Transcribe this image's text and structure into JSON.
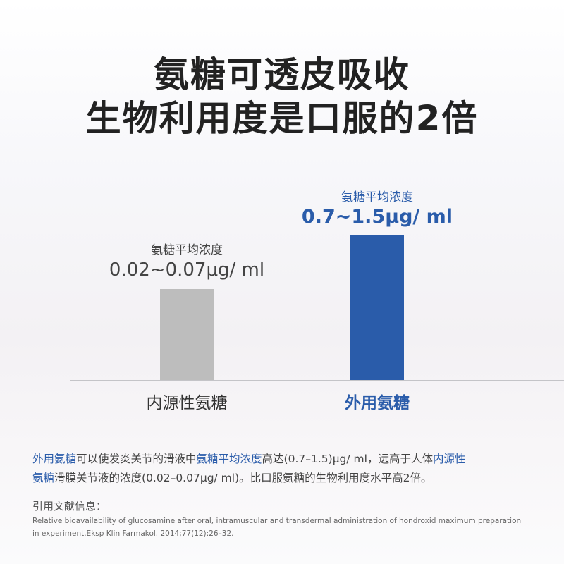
{
  "title": {
    "line1": "氨糖可透皮吸收",
    "line2": "生物利用度是口服的2倍"
  },
  "chart_data": {
    "type": "bar",
    "categories": [
      "内源性氨糖",
      "外用氨糖"
    ],
    "series": [
      {
        "values": [
          [
            0.02,
            0.07
          ],
          [
            0.7,
            1.5
          ]
        ]
      }
    ],
    "bar_titles": [
      "氨糖平均浓度",
      "氨糖平均浓度"
    ],
    "data_labels": [
      "0.02~0.07μg/ ml",
      "0.7~1.5μg/ ml"
    ],
    "colors": [
      "#bdbdbd",
      "#2a5caa"
    ],
    "grid": false
  },
  "description": {
    "line1": [
      {
        "text": "外用氨糖",
        "hl": true
      },
      {
        "text": "可以使发炎关节的滑液中",
        "hl": false
      },
      {
        "text": "氨糖平均浓度",
        "hl": true
      },
      {
        "text": "高达(0.7–1.5)μg/ ml，远高于人体",
        "hl": false
      },
      {
        "text": "内源性",
        "hl": true
      }
    ],
    "line2": [
      {
        "text": "氨糖",
        "hl": true
      },
      {
        "text": "滑膜关节液的浓度(0.02–0.07μg/ ml)。比口服氨糖的生物利用度水平高2倍。",
        "hl": false
      }
    ]
  },
  "citation": {
    "heading": "引用文献信息：",
    "line1": "Relative bioavailability of glucosamine after oral, intramuscular and transdermal administration of hondroxid maximum preparation",
    "line2": "in experiment.Eksp Klin Farmakol. 2014;77(12):26–32."
  },
  "accent_color": "#2a5caa"
}
